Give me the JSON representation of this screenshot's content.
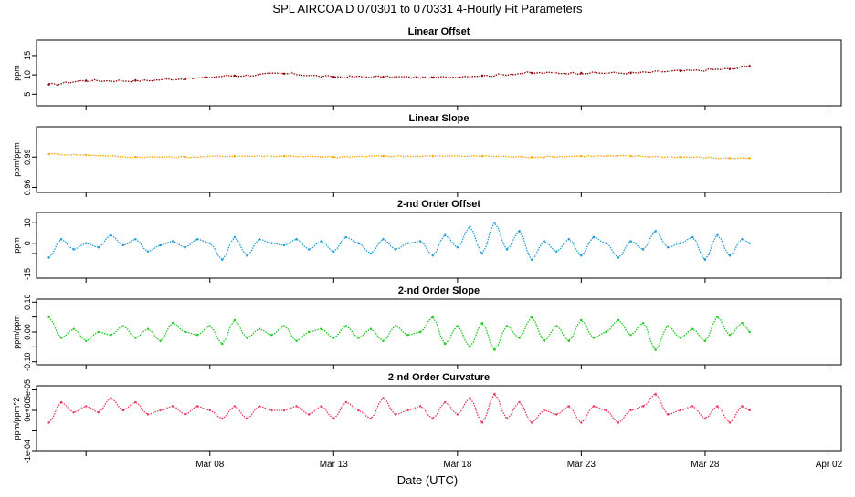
{
  "figure": {
    "title": "SPL   AIRCOA D    070301 to 070331   4-Hourly Fit Parameters",
    "xlabel": "Date (UTC)",
    "x_ticks": [
      "Mar 08",
      "Mar 13",
      "Mar 18",
      "Mar 23",
      "Mar 28",
      "Apr 02"
    ],
    "x_tick_days": [
      8,
      13,
      18,
      23,
      28,
      33
    ],
    "x_range_days": [
      1.0,
      33.5
    ],
    "data_range_days": [
      1.5,
      29.8
    ]
  },
  "chart_data": [
    {
      "type": "scatter",
      "title": "Linear Offset",
      "ylabel": "ppm",
      "color": "#8b0000",
      "connect": true,
      "ylim": [
        2,
        19
      ],
      "yticks": [
        5,
        10,
        15
      ],
      "ytick_labels": [
        "5",
        "10",
        "15"
      ],
      "x": [
        1.5,
        3,
        5,
        7,
        9,
        11,
        13,
        15,
        17,
        19,
        21,
        23,
        25,
        27,
        29,
        29.8
      ],
      "values": [
        7.5,
        8.5,
        8.5,
        9.0,
        9.8,
        10.3,
        9.5,
        9.5,
        9.3,
        9.8,
        10.5,
        10.5,
        10.5,
        11.0,
        11.5,
        12.3
      ]
    },
    {
      "type": "scatter",
      "title": "Linear Slope",
      "ylabel": "ppm/ppm",
      "color": "#ffa500",
      "connect": true,
      "ylim": [
        0.955,
        1.02
      ],
      "yticks": [
        0.96,
        0.99
      ],
      "ytick_labels": [
        "0.96",
        "0.99"
      ],
      "x": [
        1.5,
        3,
        5,
        7,
        9,
        11,
        13,
        15,
        17,
        19,
        21,
        23,
        25,
        27,
        29,
        29.8
      ],
      "values": [
        0.993,
        0.992,
        0.99,
        0.99,
        0.991,
        0.991,
        0.99,
        0.991,
        0.991,
        0.991,
        0.99,
        0.991,
        0.991,
        0.99,
        0.989,
        0.989
      ]
    },
    {
      "type": "scatter",
      "title": "2-nd Order Offset",
      "ylabel": "ppm",
      "color": "#1e9bd7",
      "connect": true,
      "ylim": [
        -17,
        15
      ],
      "yticks": [
        -15,
        -5,
        0,
        5,
        10
      ],
      "ytick_labels": [
        "-15",
        "",
        "0",
        "",
        "10"
      ],
      "x": [
        1.5,
        2,
        2.5,
        3,
        3.5,
        4,
        4.5,
        5,
        5.5,
        6,
        6.5,
        7,
        7.5,
        8,
        8.5,
        9,
        9.5,
        10,
        10.5,
        11,
        11.5,
        12,
        12.5,
        13,
        13.5,
        14,
        14.5,
        15,
        15.5,
        16,
        16.5,
        17,
        17.5,
        18,
        18.5,
        19,
        19.5,
        20,
        20.5,
        21,
        21.5,
        22,
        22.5,
        23,
        23.5,
        24,
        24.5,
        25,
        25.5,
        26,
        26.5,
        27,
        27.5,
        28,
        28.5,
        29,
        29.5,
        29.8
      ],
      "values": [
        -7,
        2,
        -3,
        0,
        -2,
        4,
        -1,
        2,
        -4,
        -1,
        1,
        -2,
        2,
        0,
        -8,
        3,
        -6,
        2,
        0,
        -1,
        2,
        -3,
        1,
        -4,
        3,
        0,
        -5,
        2,
        -3,
        0,
        1,
        -6,
        4,
        -2,
        8,
        -5,
        10,
        -3,
        6,
        -8,
        1,
        -4,
        2,
        -6,
        3,
        0,
        -7,
        1,
        -3,
        6,
        -2,
        0,
        3,
        -8,
        4,
        -6,
        2,
        0
      ]
    },
    {
      "type": "scatter",
      "title": "2-nd Order Slope",
      "ylabel": "ppm/ppm",
      "color": "#1ec81e",
      "connect": true,
      "ylim": [
        -0.11,
        0.11
      ],
      "yticks": [
        -0.1,
        -0.05,
        0.0,
        0.05,
        0.1
      ],
      "ytick_labels": [
        "-0.10",
        "",
        "0.00",
        "",
        "0.10"
      ],
      "x": [
        1.5,
        2,
        2.5,
        3,
        3.5,
        4,
        4.5,
        5,
        5.5,
        6,
        6.5,
        7,
        7.5,
        8,
        8.5,
        9,
        9.5,
        10,
        10.5,
        11,
        11.5,
        12,
        12.5,
        13,
        13.5,
        14,
        14.5,
        15,
        15.5,
        16,
        16.5,
        17,
        17.5,
        18,
        18.5,
        19,
        19.5,
        20,
        20.5,
        21,
        21.5,
        22,
        22.5,
        23,
        23.5,
        24,
        24.5,
        25,
        25.5,
        26,
        26.5,
        27,
        27.5,
        28,
        28.5,
        29,
        29.5,
        29.8
      ],
      "values": [
        0.05,
        -0.02,
        0.01,
        -0.03,
        0.0,
        -0.01,
        0.02,
        -0.02,
        0.01,
        -0.03,
        0.03,
        0.0,
        -0.01,
        0.02,
        -0.04,
        0.04,
        -0.02,
        0.01,
        -0.01,
        0.02,
        -0.03,
        0.0,
        0.01,
        -0.02,
        0.02,
        -0.02,
        0.01,
        -0.03,
        0.02,
        -0.01,
        0.0,
        0.05,
        -0.04,
        0.02,
        -0.05,
        0.03,
        -0.06,
        0.02,
        -0.02,
        0.05,
        -0.03,
        0.02,
        -0.03,
        0.04,
        -0.02,
        0.0,
        0.04,
        -0.01,
        0.03,
        -0.06,
        0.02,
        -0.02,
        0.01,
        -0.03,
        0.05,
        -0.01,
        0.03,
        0.0
      ]
    },
    {
      "type": "scatter",
      "title": "2-nd Order Curvature",
      "ylabel": "ppm/ppm^2",
      "color": "#e63c5a",
      "connect": true,
      "ylim": [
        -0.0001,
        6e-05
      ],
      "yticks": [
        -0.0001,
        -5e-05,
        0.0,
        5e-05
      ],
      "ytick_labels": [
        "-1e-04",
        "",
        "0e+00",
        "5e-05"
      ],
      "x": [
        1.5,
        2,
        2.5,
        3,
        3.5,
        4,
        4.5,
        5,
        5.5,
        6,
        6.5,
        7,
        7.5,
        8,
        8.5,
        9,
        9.5,
        10,
        10.5,
        11,
        11.5,
        12,
        12.5,
        13,
        13.5,
        14,
        14.5,
        15,
        15.5,
        16,
        16.5,
        17,
        17.5,
        18,
        18.5,
        19,
        19.5,
        20,
        20.5,
        21,
        21.5,
        22,
        22.5,
        23,
        23.5,
        24,
        24.5,
        25,
        25.5,
        26,
        26.5,
        27,
        27.5,
        28,
        28.5,
        29,
        29.5,
        29.8
      ],
      "values": [
        -3e-05,
        2e-05,
        -5e-06,
        1e-05,
        -5e-06,
        3e-05,
        0.0,
        2e-05,
        -1e-05,
        0.0,
        1e-05,
        -1e-05,
        1e-05,
        0.0,
        -2e-05,
        1e-05,
        -2e-05,
        1e-05,
        0.0,
        0.0,
        1e-05,
        -1e-05,
        1e-05,
        -2e-05,
        2e-05,
        0.0,
        -2e-05,
        3e-05,
        -1e-05,
        0.0,
        1e-05,
        -2e-05,
        2e-05,
        -1e-05,
        3e-05,
        -3e-05,
        4e-05,
        -2e-05,
        2e-05,
        -3e-05,
        0.0,
        -1e-05,
        1e-05,
        -3e-05,
        1e-05,
        0.0,
        -3e-05,
        0.0,
        1e-05,
        4e-05,
        -1e-05,
        0.0,
        1e-05,
        -2e-05,
        1e-05,
        -3e-05,
        1e-05,
        0.0
      ]
    }
  ]
}
